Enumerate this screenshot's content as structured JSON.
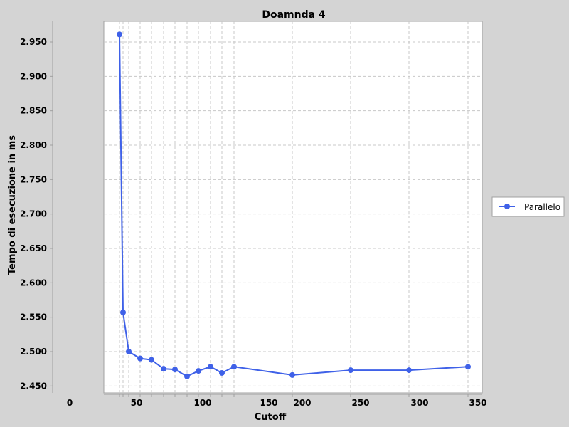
{
  "chart_data": {
    "type": "line",
    "title": "Doamnda 4",
    "xlabel": "Cutoff",
    "ylabel": "Tempo di esecuzione in ms",
    "legend": {
      "placement": "right",
      "entries": [
        "Parallelo"
      ]
    },
    "grid": true,
    "x_tick_labels": [
      "0",
      "50",
      "100",
      "150",
      "200",
      "250",
      "300",
      "350"
    ],
    "y_ticks": [
      2.45,
      2.5,
      2.55,
      2.6,
      2.65,
      2.7,
      2.75,
      2.8,
      2.85,
      2.9,
      2.95
    ],
    "y_tick_labels": [
      "2.450",
      "2.500",
      "2.550",
      "2.600",
      "2.650",
      "2.700",
      "2.750",
      "2.800",
      "2.850",
      "2.900",
      "2.950"
    ],
    "ylim": [
      2.44,
      2.98
    ],
    "series": [
      {
        "name": "Parallelo",
        "color": "#3f61e8",
        "points": [
          {
            "x": 1,
            "y": 2.961
          },
          {
            "x": 4,
            "y": 2.557
          },
          {
            "x": 9,
            "y": 2.5
          },
          {
            "x": 19,
            "y": 2.49
          },
          {
            "x": 29,
            "y": 2.488
          },
          {
            "x": 39,
            "y": 2.475
          },
          {
            "x": 49,
            "y": 2.474
          },
          {
            "x": 59,
            "y": 2.464
          },
          {
            "x": 69,
            "y": 2.472
          },
          {
            "x": 79,
            "y": 2.478
          },
          {
            "x": 89,
            "y": 2.469
          },
          {
            "x": 99,
            "y": 2.478
          },
          {
            "x": 149,
            "y": 2.466
          },
          {
            "x": 199,
            "y": 2.473
          },
          {
            "x": 249,
            "y": 2.473
          },
          {
            "x": 299,
            "y": 2.478
          }
        ]
      }
    ]
  }
}
